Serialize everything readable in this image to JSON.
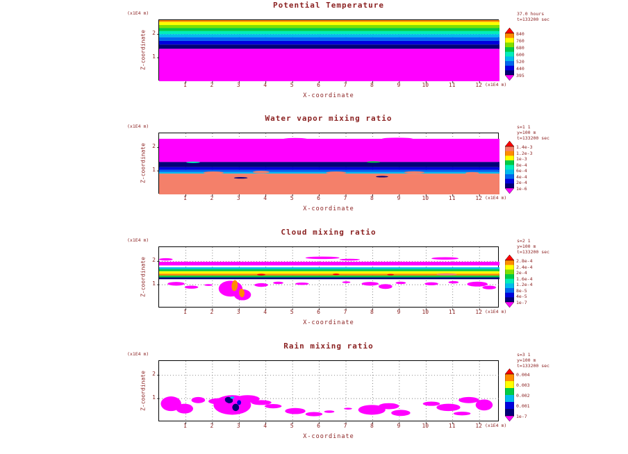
{
  "colors": {
    "text": "#8b2222",
    "grid": "#555555",
    "axis": "#000000",
    "background": "#ffffff"
  },
  "_format": {
    "bands": "[fromFrac, toFrac, fillColor] horizontal band of plot box",
    "blobs": "[cxFrac, cyFrac, rxFrac, ryFrac, fillColor, rotateDeg]"
  },
  "chart_data": [
    {
      "type": "heatmap",
      "title": "Potential Temperature",
      "xlabel": "X-coordinate",
      "ylabel": "Z-coordinate",
      "x_unit": "(x1E4 m)",
      "y_unit": "(x1E4 m)",
      "x_range": [
        0,
        12.75
      ],
      "y_range": [
        0,
        2.6
      ],
      "x_ticks": [
        1,
        2,
        3,
        4,
        5,
        6,
        7,
        8,
        9,
        10,
        11,
        12
      ],
      "y_ticks": [
        1,
        2
      ],
      "annotation_lines": [
        "37.0 hours",
        "t=133200 sec"
      ],
      "colorbar": {
        "top": "#ff0000",
        "bottom": "#ff00ff",
        "segments": [
          "#ff8c00",
          "#ffff00",
          "#7fdf00",
          "#00cc44",
          "#00eebb",
          "#00bbee",
          "#0066ee",
          "#0000dd",
          "#000077"
        ],
        "labels": [
          "840",
          "760",
          "680",
          "600",
          "520",
          "440",
          "395"
        ]
      },
      "bands": [
        [
          0.0,
          0.03,
          "#ff8c00"
        ],
        [
          0.03,
          0.08,
          "#ffff00"
        ],
        [
          0.08,
          0.13,
          "#7fdf00"
        ],
        [
          0.13,
          0.18,
          "#00cc44"
        ],
        [
          0.18,
          0.23,
          "#00eebb"
        ],
        [
          0.23,
          0.28,
          "#00bbee"
        ],
        [
          0.28,
          0.34,
          "#0066ee"
        ],
        [
          0.34,
          0.4,
          "#0000dd"
        ],
        [
          0.4,
          0.47,
          "#000077"
        ],
        [
          0.47,
          1.0,
          "#ff00ff"
        ]
      ],
      "blobs": []
    },
    {
      "type": "heatmap",
      "title": "Water vapor mixing ratio",
      "xlabel": "X-coordinate",
      "ylabel": "Z-coordinate",
      "x_unit": "(x1E4 m)",
      "y_unit": "(x1E4 m)",
      "x_range": [
        0,
        12.75
      ],
      "y_range": [
        0,
        2.6
      ],
      "x_ticks": [
        1,
        2,
        3,
        4,
        5,
        6,
        7,
        8,
        9,
        10,
        11,
        12
      ],
      "y_ticks": [
        1,
        2
      ],
      "annotation_lines": [
        "s=1 1",
        "y=100 m",
        "t=133200 sec"
      ],
      "colorbar": {
        "top": "#ff0000",
        "bottom": "#ff00ff",
        "segments": [
          "#f4806a",
          "#ff8c00",
          "#ffff00",
          "#00cc44",
          "#00eebb",
          "#00bbee",
          "#0066ee",
          "#0000dd",
          "#000077"
        ],
        "labels": [
          "1.4e-3",
          "1.2e-3",
          "1e-3",
          "8e-4",
          "6e-4",
          "4e-4",
          "2e-4",
          "1e-6"
        ]
      },
      "bands": [
        [
          0.09,
          0.47,
          "#ff00ff"
        ],
        [
          0.47,
          0.555,
          "#000077"
        ],
        [
          0.555,
          0.6,
          "#0000dd"
        ],
        [
          0.6,
          0.635,
          "#0066ee"
        ],
        [
          0.635,
          0.66,
          "#00bbee"
        ],
        [
          0.66,
          1.0,
          "#f4806a"
        ]
      ],
      "blobs": [
        [
          0.16,
          0.645,
          0.03,
          0.02,
          "#f4806a",
          0
        ],
        [
          0.3,
          0.635,
          0.025,
          0.02,
          "#f4806a",
          0
        ],
        [
          0.52,
          0.645,
          0.03,
          0.02,
          "#f4806a",
          0
        ],
        [
          0.75,
          0.64,
          0.03,
          0.018,
          "#f4806a",
          0
        ],
        [
          0.92,
          0.65,
          0.02,
          0.015,
          "#f4806a",
          0
        ],
        [
          0.24,
          0.73,
          0.02,
          0.012,
          "#000077",
          0
        ],
        [
          0.655,
          0.71,
          0.018,
          0.012,
          "#000077",
          0
        ],
        [
          0.1,
          0.475,
          0.02,
          0.012,
          "#00eebb",
          0
        ],
        [
          0.63,
          0.47,
          0.02,
          0.012,
          "#00cc44",
          0
        ],
        [
          0.4,
          0.095,
          0.035,
          0.018,
          "#ff00ff",
          0
        ],
        [
          0.7,
          0.09,
          0.045,
          0.018,
          "#ff00ff",
          0
        ]
      ]
    },
    {
      "type": "heatmap",
      "title": "Cloud mixing ratio",
      "xlabel": "X-coordinate",
      "ylabel": "Z-coordinate",
      "x_unit": "(x1E4 m)",
      "y_unit": "(x1E4 m)",
      "x_range": [
        0,
        12.75
      ],
      "y_range": [
        0,
        2.6
      ],
      "x_ticks": [
        1,
        2,
        3,
        4,
        5,
        6,
        7,
        8,
        9,
        10,
        11,
        12
      ],
      "y_ticks": [
        1,
        2
      ],
      "annotation_lines": [
        "s=2 1",
        "y=100 m",
        "t=133200 sec"
      ],
      "colorbar": {
        "top": "#ff0000",
        "bottom": "#ff00ff",
        "segments": [
          "#ff8c00",
          "#ffff00",
          "#7fdf00",
          "#00cc44",
          "#00eebb",
          "#00bbee",
          "#0066ee",
          "#0000dd",
          "#000077"
        ],
        "labels": [
          "2.8e-4",
          "2.4e-4",
          "2e-4",
          "1.6e-4",
          "1.2e-4",
          "8e-5",
          "4e-5",
          "1e-7"
        ]
      },
      "bands": [
        [
          0.24,
          0.3,
          "#ff00ff"
        ],
        [
          0.33,
          0.36,
          "#00bbee"
        ],
        [
          0.36,
          0.395,
          "#00cc44"
        ],
        [
          0.395,
          0.435,
          "#ffff00"
        ],
        [
          0.435,
          0.465,
          "#ff8c00"
        ],
        [
          0.465,
          0.495,
          "#00cc44"
        ],
        [
          0.495,
          0.525,
          "#000077"
        ]
      ],
      "blobs": [
        [
          0.05,
          0.6,
          0.025,
          0.03,
          "#ff00ff",
          0
        ],
        [
          0.095,
          0.655,
          0.02,
          0.025,
          "#ff00ff",
          0
        ],
        [
          0.145,
          0.62,
          0.012,
          0.015,
          "#ff00ff",
          0
        ],
        [
          0.21,
          0.68,
          0.035,
          0.13,
          "#ff00ff",
          0
        ],
        [
          0.245,
          0.78,
          0.025,
          0.09,
          "#ff00ff",
          0
        ],
        [
          0.3,
          0.62,
          0.02,
          0.03,
          "#ff00ff",
          0
        ],
        [
          0.35,
          0.585,
          0.015,
          0.02,
          "#ff00ff",
          0
        ],
        [
          0.42,
          0.6,
          0.02,
          0.02,
          "#ff00ff",
          0
        ],
        [
          0.55,
          0.575,
          0.012,
          0.015,
          "#ff00ff",
          0
        ],
        [
          0.62,
          0.6,
          0.025,
          0.03,
          "#ff00ff",
          0
        ],
        [
          0.665,
          0.645,
          0.02,
          0.04,
          "#ff00ff",
          0
        ],
        [
          0.71,
          0.585,
          0.015,
          0.02,
          "#ff00ff",
          0
        ],
        [
          0.8,
          0.6,
          0.02,
          0.025,
          "#ff00ff",
          0
        ],
        [
          0.865,
          0.575,
          0.015,
          0.02,
          "#ff00ff",
          0
        ],
        [
          0.935,
          0.605,
          0.03,
          0.04,
          "#ff00ff",
          0
        ],
        [
          0.97,
          0.66,
          0.02,
          0.03,
          "#ff00ff",
          0
        ],
        [
          0.48,
          0.175,
          0.05,
          0.02,
          "#ff00ff",
          0
        ],
        [
          0.56,
          0.205,
          0.03,
          0.015,
          "#ff00ff",
          0
        ],
        [
          0.84,
          0.185,
          0.04,
          0.02,
          "#ff00ff",
          0
        ],
        [
          0.02,
          0.2,
          0.02,
          0.02,
          "#ff00ff",
          0
        ],
        [
          0.845,
          0.445,
          0.03,
          0.018,
          "#f4806a",
          0
        ],
        [
          0.3,
          0.45,
          0.012,
          0.015,
          "#ff0000",
          0
        ],
        [
          0.52,
          0.445,
          0.01,
          0.013,
          "#ff0000",
          0
        ],
        [
          0.68,
          0.45,
          0.01,
          0.012,
          "#ff0000",
          0
        ],
        [
          0.222,
          0.63,
          0.009,
          0.09,
          "#ff8c00",
          6
        ],
        [
          0.243,
          0.75,
          0.008,
          0.07,
          "#ff8c00",
          -5
        ]
      ]
    },
    {
      "type": "heatmap",
      "title": "Rain mixing ratio",
      "xlabel": "X-coordinate",
      "ylabel": "Z-coordinate",
      "x_unit": "(x1E4 m)",
      "y_unit": "(x1E4 m)",
      "x_range": [
        0,
        12.75
      ],
      "y_range": [
        0,
        2.6
      ],
      "x_ticks": [
        1,
        2,
        3,
        4,
        5,
        6,
        7,
        8,
        9,
        10,
        11,
        12
      ],
      "y_ticks": [
        1,
        2
      ],
      "annotation_lines": [
        "s=3 1",
        "y=100 m",
        "t=133200 sec"
      ],
      "colorbar": {
        "top": "#ff0000",
        "bottom": "#ff00ff",
        "segments": [
          "#ff8c00",
          "#ffff00",
          "#00cc44",
          "#00bbee",
          "#0000dd",
          "#000077"
        ],
        "labels": [
          "0.004",
          "0.003",
          "0.002",
          "0.001",
          "1e-7"
        ]
      },
      "bands": [],
      "blobs": [
        [
          0.035,
          0.7,
          0.03,
          0.12,
          "#ff00ff",
          0
        ],
        [
          0.075,
          0.78,
          0.025,
          0.08,
          "#ff00ff",
          0
        ],
        [
          0.115,
          0.64,
          0.02,
          0.05,
          "#ff00ff",
          0
        ],
        [
          0.175,
          0.66,
          0.03,
          0.05,
          "#ff00ff",
          0
        ],
        [
          0.215,
          0.72,
          0.055,
          0.16,
          "#ff00ff",
          0
        ],
        [
          0.26,
          0.62,
          0.035,
          0.06,
          "#ff00ff",
          0
        ],
        [
          0.3,
          0.68,
          0.03,
          0.04,
          "#ff00ff",
          0
        ],
        [
          0.335,
          0.74,
          0.025,
          0.035,
          "#ff00ff",
          0
        ],
        [
          0.4,
          0.82,
          0.03,
          0.05,
          "#ff00ff",
          0
        ],
        [
          0.455,
          0.87,
          0.025,
          0.035,
          "#ff00ff",
          0
        ],
        [
          0.5,
          0.83,
          0.015,
          0.02,
          "#ff00ff",
          0
        ],
        [
          0.555,
          0.78,
          0.012,
          0.015,
          "#ff00ff",
          0
        ],
        [
          0.625,
          0.8,
          0.04,
          0.08,
          "#ff00ff",
          0
        ],
        [
          0.675,
          0.74,
          0.03,
          0.05,
          "#ff00ff",
          0
        ],
        [
          0.71,
          0.85,
          0.028,
          0.05,
          "#ff00ff",
          0
        ],
        [
          0.8,
          0.7,
          0.025,
          0.035,
          "#ff00ff",
          0
        ],
        [
          0.85,
          0.76,
          0.035,
          0.06,
          "#ff00ff",
          0
        ],
        [
          0.91,
          0.64,
          0.03,
          0.05,
          "#ff00ff",
          0
        ],
        [
          0.955,
          0.72,
          0.025,
          0.09,
          "#ff00ff",
          0
        ],
        [
          0.89,
          0.86,
          0.025,
          0.03,
          "#ff00ff",
          0
        ],
        [
          0.205,
          0.64,
          0.012,
          0.05,
          "#000077",
          15
        ],
        [
          0.225,
          0.76,
          0.01,
          0.06,
          "#000077",
          -12
        ],
        [
          0.235,
          0.68,
          0.006,
          0.04,
          "#0000dd",
          0
        ],
        [
          0.215,
          0.6,
          0.006,
          0.02,
          "#00bbee",
          0
        ]
      ]
    }
  ]
}
